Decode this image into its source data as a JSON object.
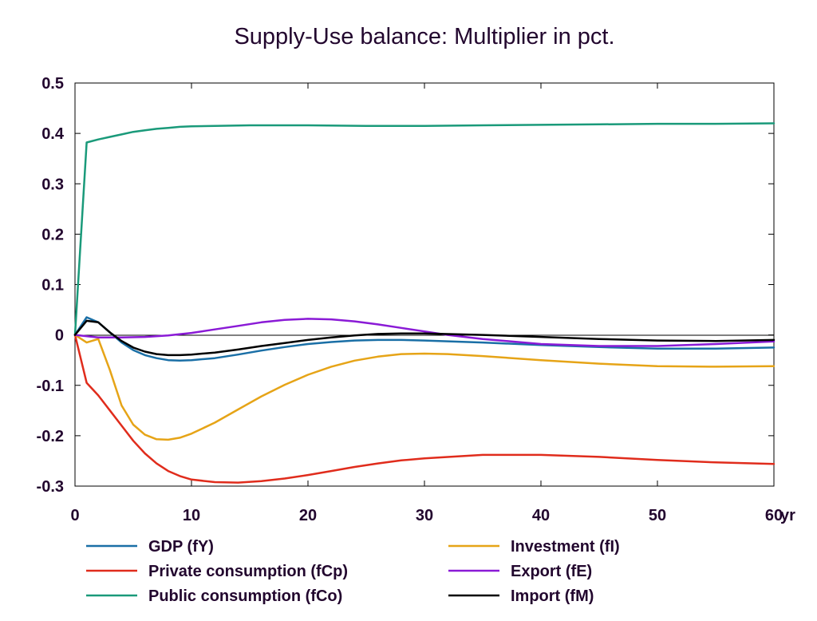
{
  "chart_data": {
    "type": "line",
    "title": "Supply-Use balance: Multiplier in pct.",
    "x_unit_label": "yr",
    "xlim": [
      0,
      60
    ],
    "ylim": [
      -0.3,
      0.5
    ],
    "x_ticks": [
      0,
      10,
      20,
      30,
      40,
      50,
      60
    ],
    "y_ticks": [
      0.5,
      0.4,
      0.3,
      0.2,
      0.1,
      0,
      -0.1,
      -0.2,
      -0.3
    ],
    "y_tick_labels": [
      "0.5",
      "0.4",
      "0.3",
      "0.2",
      "0.1",
      "0",
      "-0.1",
      "-0.2",
      "-0.3"
    ],
    "x_tick_labels": [
      "0",
      "10",
      "20",
      "30",
      "40",
      "50",
      "60"
    ],
    "zero_line": true,
    "grid": false,
    "legend_position": "bottom",
    "series": [
      {
        "name": "GDP (fY)",
        "color": "#1a6fa6",
        "x": [
          0,
          1,
          2,
          3,
          4,
          5,
          6,
          7,
          8,
          9,
          10,
          12,
          14,
          16,
          18,
          20,
          22,
          24,
          26,
          28,
          30,
          35,
          40,
          45,
          50,
          55,
          60
        ],
        "y": [
          0,
          0.035,
          0.025,
          0.005,
          -0.015,
          -0.03,
          -0.04,
          -0.046,
          -0.05,
          -0.051,
          -0.05,
          -0.046,
          -0.039,
          -0.031,
          -0.024,
          -0.018,
          -0.014,
          -0.011,
          -0.01,
          -0.01,
          -0.011,
          -0.015,
          -0.02,
          -0.024,
          -0.027,
          -0.027,
          -0.025
        ]
      },
      {
        "name": "Private consumption (fCp)",
        "color": "#e02c1c",
        "x": [
          0,
          1,
          2,
          3,
          4,
          5,
          6,
          7,
          8,
          9,
          10,
          12,
          14,
          16,
          18,
          20,
          22,
          24,
          26,
          28,
          30,
          35,
          40,
          45,
          50,
          55,
          60
        ],
        "y": [
          0,
          -0.095,
          -0.12,
          -0.15,
          -0.18,
          -0.21,
          -0.235,
          -0.255,
          -0.27,
          -0.28,
          -0.287,
          -0.292,
          -0.293,
          -0.29,
          -0.285,
          -0.278,
          -0.27,
          -0.262,
          -0.255,
          -0.249,
          -0.245,
          -0.238,
          -0.238,
          -0.242,
          -0.248,
          -0.253,
          -0.256
        ]
      },
      {
        "name": "Public consumption (fCo)",
        "color": "#1a9a7a",
        "x": [
          0,
          1,
          2,
          3,
          4,
          5,
          6,
          7,
          8,
          9,
          10,
          12,
          15,
          20,
          25,
          30,
          35,
          40,
          45,
          50,
          55,
          60
        ],
        "y": [
          0,
          0.382,
          0.388,
          0.393,
          0.398,
          0.403,
          0.406,
          0.409,
          0.411,
          0.413,
          0.414,
          0.415,
          0.416,
          0.416,
          0.415,
          0.415,
          0.416,
          0.417,
          0.418,
          0.419,
          0.419,
          0.42
        ]
      },
      {
        "name": "Investment (fI)",
        "color": "#e6a417",
        "x": [
          0,
          1,
          2,
          3,
          4,
          5,
          6,
          7,
          8,
          9,
          10,
          12,
          14,
          16,
          18,
          20,
          22,
          24,
          26,
          28,
          30,
          32,
          35,
          40,
          45,
          50,
          55,
          60
        ],
        "y": [
          0,
          -0.015,
          -0.008,
          -0.07,
          -0.14,
          -0.178,
          -0.198,
          -0.207,
          -0.208,
          -0.204,
          -0.196,
          -0.174,
          -0.148,
          -0.122,
          -0.099,
          -0.079,
          -0.063,
          -0.051,
          -0.043,
          -0.038,
          -0.037,
          -0.038,
          -0.042,
          -0.05,
          -0.057,
          -0.062,
          -0.063,
          -0.062
        ]
      },
      {
        "name": "Export (fE)",
        "color": "#8a1ad6",
        "x": [
          0,
          2,
          4,
          6,
          8,
          10,
          12,
          14,
          16,
          18,
          20,
          22,
          24,
          26,
          28,
          30,
          32,
          35,
          40,
          45,
          50,
          55,
          60
        ],
        "y": [
          0,
          -0.005,
          -0.005,
          -0.004,
          -0.001,
          0.004,
          0.011,
          0.018,
          0.025,
          0.03,
          0.032,
          0.031,
          0.027,
          0.021,
          0.014,
          0.007,
          0.0,
          -0.008,
          -0.018,
          -0.022,
          -0.022,
          -0.018,
          -0.013
        ]
      },
      {
        "name": "Import (fM)",
        "color": "#000000",
        "x": [
          0,
          1,
          2,
          3,
          4,
          5,
          6,
          7,
          8,
          9,
          10,
          12,
          14,
          16,
          18,
          20,
          22,
          24,
          26,
          28,
          30,
          35,
          40,
          45,
          50,
          55,
          60
        ],
        "y": [
          0,
          0.028,
          0.025,
          0.005,
          -0.012,
          -0.025,
          -0.033,
          -0.038,
          -0.04,
          -0.04,
          -0.039,
          -0.035,
          -0.029,
          -0.022,
          -0.016,
          -0.01,
          -0.005,
          -0.001,
          0.002,
          0.003,
          0.003,
          0.0,
          -0.004,
          -0.008,
          -0.011,
          -0.012,
          -0.01
        ]
      }
    ]
  }
}
